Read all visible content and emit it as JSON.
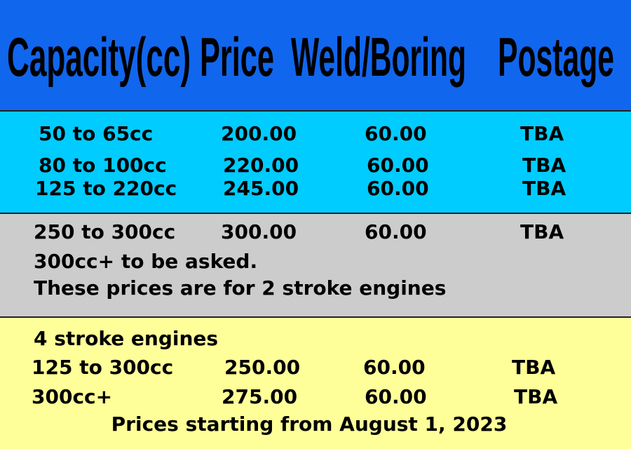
{
  "header": [
    "Capacity(cc)",
    "Price",
    "Weld/Boring",
    "Postage"
  ],
  "sections": [
    {
      "rows": [
        [
          "50 to 65cc",
          "200.00",
          "60.00",
          "TBA"
        ],
        [
          "80 to 100cc",
          "220.00",
          "60.00",
          "TBA"
        ],
        [
          "125 to 220cc",
          "245.00",
          "60.00",
          "TBA"
        ]
      ]
    },
    {
      "rows": [
        [
          "250 to 300cc",
          "300.00",
          "60.00",
          "TBA"
        ]
      ],
      "notes": [
        "300cc+ to be asked.",
        "These prices are for 2 stroke engines"
      ]
    },
    {
      "heading": "4 stroke engines",
      "rows": [
        [
          "125 to 300cc",
          "250.00",
          "60.00",
          "TBA"
        ],
        [
          "300cc+",
          "275.00",
          "60.00",
          "TBA"
        ]
      ]
    }
  ],
  "footer": "Prices starting from August 1, 2023"
}
